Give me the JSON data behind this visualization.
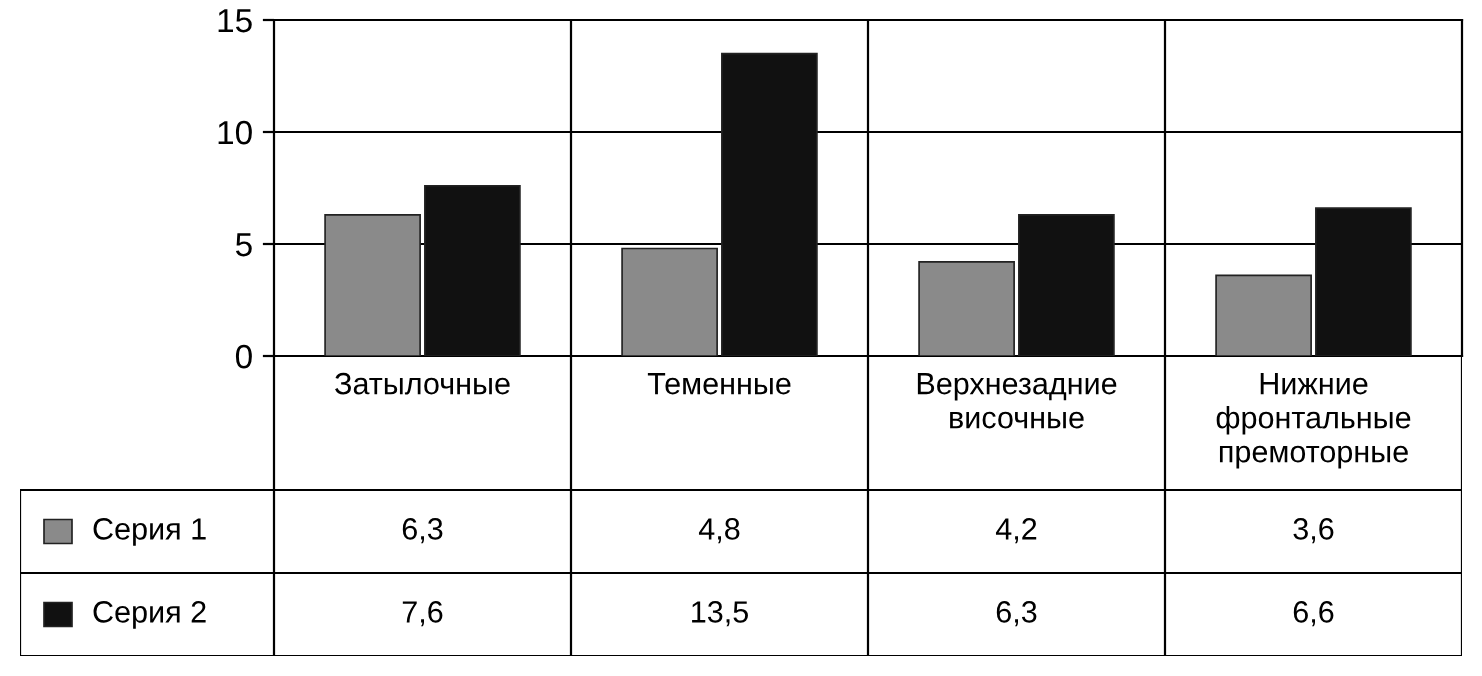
{
  "chart_data": {
    "type": "bar",
    "categories": [
      "Затылочные",
      "Теменные",
      "Верхнезадние\nвисочные",
      "Нижние\nфронтальные\nпремоторные"
    ],
    "series": [
      {
        "name": "Серия 1",
        "color": "#8a8a8a",
        "values": [
          6.3,
          4.8,
          4.2,
          3.6
        ],
        "value_labels": [
          "6,3",
          "4,8",
          "4,2",
          "3,6"
        ]
      },
      {
        "name": "Серия 2",
        "color": "#111111",
        "values": [
          7.6,
          13.5,
          6.3,
          6.6
        ],
        "value_labels": [
          "7,6",
          "13,5",
          "6,3",
          "6,6"
        ]
      }
    ],
    "ylim": [
      0,
      15
    ],
    "yticks": [
      0,
      5,
      10,
      15
    ],
    "grid": "y",
    "legend": "left"
  }
}
